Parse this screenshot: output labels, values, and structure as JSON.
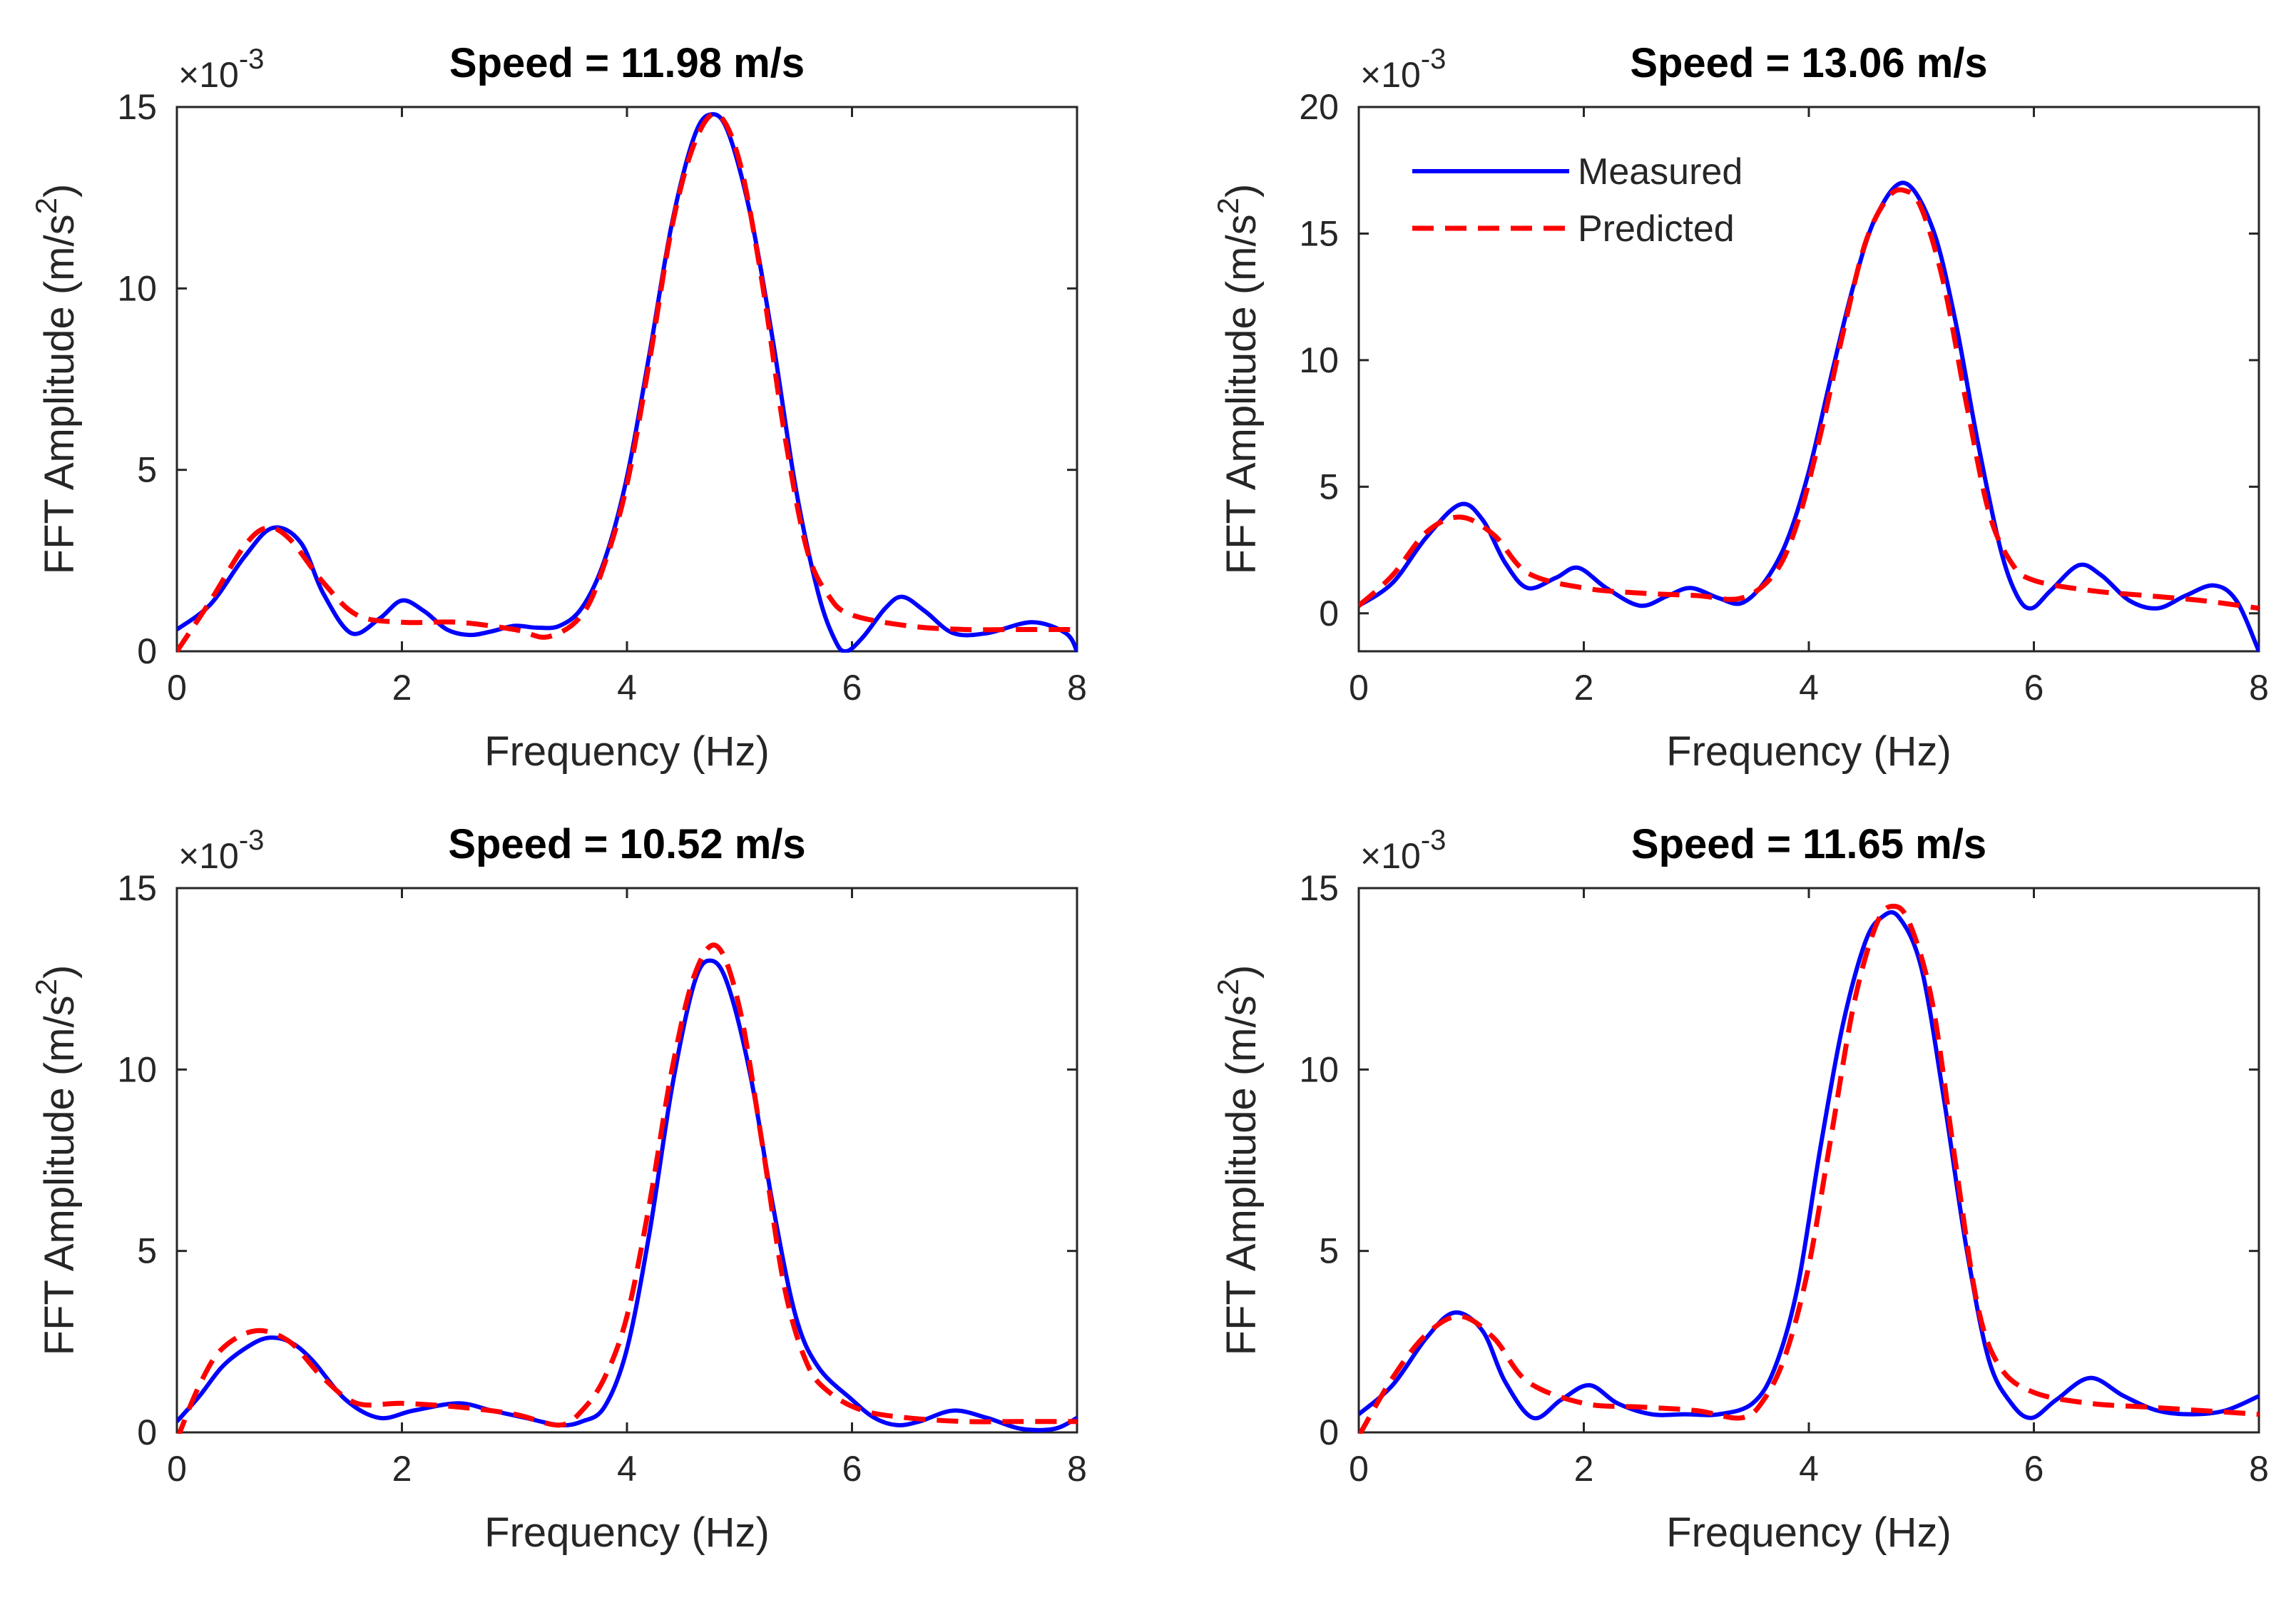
{
  "x_unit": "Hz",
  "y_unit_prefix": "m/s",
  "y_unit_exp": "2",
  "xlabel": "Frequency (Hz)",
  "ylabel_text": "FFT Amplitude (m/s",
  "ylabel_close": ")",
  "scale_mult": "×10",
  "scale_exp": "-3",
  "legend": {
    "measured": "Measured",
    "predicted": "Predicted"
  },
  "colors": {
    "measured": "#0000ff",
    "predicted": "#ff0000",
    "axes": "#262626"
  },
  "chart_data": [
    {
      "type": "line",
      "title": "Speed = 11.98 m/s",
      "xlabel": "Frequency (Hz)",
      "ylabel": "FFT Amplitude (m/s2)",
      "y_scale": "×10^-3",
      "xlim": [
        0,
        8
      ],
      "ylim": [
        0,
        15
      ],
      "xticks": [
        0,
        2,
        4,
        6,
        8
      ],
      "yticks": [
        0,
        5,
        10,
        15
      ],
      "grid": false,
      "legend": "none",
      "series": [
        {
          "name": "Measured",
          "x": [
            0,
            0.3,
            0.6,
            0.85,
            1.1,
            1.3,
            1.55,
            1.8,
            2.0,
            2.2,
            2.4,
            2.6,
            2.8,
            3.0,
            3.2,
            3.4,
            3.6,
            3.8,
            4.0,
            4.2,
            4.4,
            4.6,
            4.75,
            4.9,
            5.1,
            5.3,
            5.5,
            5.7,
            5.85,
            5.95,
            6.1,
            6.3,
            6.45,
            6.65,
            6.9,
            7.2,
            7.6,
            7.9,
            8.0
          ],
          "y": [
            0.6,
            1.3,
            2.6,
            3.4,
            3.0,
            1.6,
            0.5,
            0.9,
            1.4,
            1.1,
            0.6,
            0.45,
            0.55,
            0.7,
            0.65,
            0.7,
            1.2,
            2.5,
            4.8,
            8.2,
            11.8,
            14.2,
            14.8,
            14.3,
            12.0,
            8.5,
            4.5,
            1.6,
            0.3,
            0.0,
            0.4,
            1.2,
            1.5,
            1.1,
            0.5,
            0.5,
            0.8,
            0.5,
            0.0
          ]
        },
        {
          "name": "Predicted",
          "x": [
            0,
            0.3,
            0.6,
            0.8,
            1.0,
            1.3,
            1.6,
            2.0,
            2.5,
            3.0,
            3.3,
            3.6,
            3.8,
            4.0,
            4.2,
            4.4,
            4.6,
            4.8,
            5.0,
            5.2,
            5.4,
            5.6,
            5.8,
            6.0,
            6.5,
            7.0,
            7.5,
            8.0
          ],
          "y": [
            0.0,
            1.4,
            2.9,
            3.4,
            3.1,
            1.9,
            1.0,
            0.8,
            0.8,
            0.6,
            0.4,
            1.0,
            2.4,
            4.6,
            8.0,
            11.7,
            14.0,
            14.8,
            13.5,
            10.2,
            6.0,
            2.8,
            1.5,
            1.0,
            0.7,
            0.6,
            0.6,
            0.6
          ]
        }
      ]
    },
    {
      "type": "line",
      "title": "Speed = 13.06 m/s",
      "xlabel": "Frequency (Hz)",
      "ylabel": "FFT Amplitude (m/s2)",
      "y_scale": "×10^-3",
      "xlim": [
        0,
        8
      ],
      "ylim": [
        -1.5,
        20
      ],
      "xticks": [
        0,
        2,
        4,
        6,
        8
      ],
      "yticks": [
        0,
        5,
        10,
        15,
        20
      ],
      "grid": false,
      "legend": "top-left",
      "series": [
        {
          "name": "Measured",
          "x": [
            0,
            0.3,
            0.6,
            0.9,
            1.1,
            1.3,
            1.5,
            1.75,
            1.95,
            2.2,
            2.5,
            2.75,
            2.95,
            3.2,
            3.4,
            3.6,
            3.8,
            4.0,
            4.2,
            4.4,
            4.6,
            4.85,
            5.1,
            5.3,
            5.5,
            5.7,
            5.85,
            5.98,
            6.15,
            6.4,
            6.6,
            6.85,
            7.1,
            7.35,
            7.6,
            7.8,
            8.0
          ],
          "y": [
            0.3,
            1.2,
            3.0,
            4.3,
            3.7,
            2.0,
            1.0,
            1.4,
            1.8,
            1.0,
            0.3,
            0.7,
            1.0,
            0.6,
            0.4,
            1.2,
            2.8,
            5.6,
            9.4,
            13.0,
            15.7,
            17.0,
            15.2,
            11.6,
            6.8,
            2.6,
            0.7,
            0.2,
            0.9,
            1.9,
            1.5,
            0.5,
            0.2,
            0.7,
            1.1,
            0.5,
            -1.5
          ]
        },
        {
          "name": "Predicted",
          "x": [
            0,
            0.3,
            0.6,
            0.9,
            1.2,
            1.5,
            2.0,
            2.5,
            3.0,
            3.4,
            3.7,
            3.9,
            4.1,
            4.3,
            4.5,
            4.7,
            4.85,
            5.0,
            5.2,
            5.4,
            5.6,
            5.8,
            6.0,
            6.5,
            7.0,
            7.5,
            8.0
          ],
          "y": [
            0.3,
            1.5,
            3.2,
            3.8,
            3.1,
            1.6,
            1.0,
            0.8,
            0.7,
            0.6,
            1.6,
            3.6,
            7.0,
            11.0,
            14.6,
            16.4,
            16.7,
            16.0,
            13.0,
            8.3,
            4.0,
            2.0,
            1.3,
            0.9,
            0.7,
            0.5,
            0.2
          ]
        }
      ]
    },
    {
      "type": "line",
      "title": "Speed = 10.52 m/s",
      "xlabel": "Frequency (Hz)",
      "ylabel": "FFT Amplitude (m/s2)",
      "y_scale": "×10^-3",
      "xlim": [
        0,
        8
      ],
      "ylim": [
        0,
        15
      ],
      "xticks": [
        0,
        2,
        4,
        6,
        8
      ],
      "yticks": [
        0,
        5,
        10,
        15
      ],
      "grid": false,
      "legend": "none",
      "series": [
        {
          "name": "Measured",
          "x": [
            0,
            0.2,
            0.4,
            0.6,
            0.8,
            1.0,
            1.2,
            1.5,
            1.8,
            2.1,
            2.5,
            2.8,
            3.1,
            3.4,
            3.6,
            3.8,
            4.0,
            4.2,
            4.4,
            4.6,
            4.75,
            4.9,
            5.1,
            5.3,
            5.5,
            5.7,
            6.0,
            6.2,
            6.4,
            6.6,
            6.9,
            7.2,
            7.5,
            7.8,
            8.0
          ],
          "y": [
            0.3,
            1.0,
            1.8,
            2.3,
            2.6,
            2.5,
            2.0,
            0.9,
            0.4,
            0.6,
            0.8,
            0.6,
            0.4,
            0.2,
            0.3,
            0.7,
            2.3,
            5.5,
            9.5,
            12.4,
            13.0,
            12.3,
            9.8,
            6.2,
            3.2,
            1.8,
            0.9,
            0.4,
            0.2,
            0.3,
            0.6,
            0.4,
            0.1,
            0.1,
            0.4
          ]
        },
        {
          "name": "Predicted",
          "x": [
            0,
            0.2,
            0.4,
            0.7,
            1.0,
            1.3,
            1.6,
            2.0,
            2.5,
            3.0,
            3.4,
            3.6,
            3.8,
            4.0,
            4.2,
            4.4,
            4.6,
            4.8,
            5.0,
            5.2,
            5.4,
            5.6,
            5.8,
            6.1,
            6.5,
            7.0,
            7.5,
            8.0
          ],
          "y": [
            -0.2,
            1.3,
            2.3,
            2.8,
            2.5,
            1.5,
            0.8,
            0.8,
            0.7,
            0.5,
            0.2,
            0.6,
            1.5,
            3.2,
            6.3,
            10.0,
            12.6,
            13.4,
            11.7,
            8.0,
            4.0,
            1.9,
            1.1,
            0.6,
            0.4,
            0.3,
            0.3,
            0.3
          ]
        }
      ]
    },
    {
      "type": "line",
      "title": "Speed = 11.65 m/s",
      "xlabel": "Frequency (Hz)",
      "ylabel": "FFT Amplitude (m/s2)",
      "y_scale": "×10^-3",
      "xlim": [
        0,
        8
      ],
      "ylim": [
        0,
        15
      ],
      "xticks": [
        0,
        2,
        4,
        6,
        8
      ],
      "yticks": [
        0,
        5,
        10,
        15
      ],
      "grid": false,
      "legend": "none",
      "series": [
        {
          "name": "Measured",
          "x": [
            0,
            0.3,
            0.6,
            0.85,
            1.1,
            1.3,
            1.55,
            1.8,
            2.05,
            2.3,
            2.6,
            2.9,
            3.2,
            3.5,
            3.7,
            3.9,
            4.1,
            4.3,
            4.5,
            4.65,
            4.8,
            5.0,
            5.2,
            5.4,
            5.6,
            5.8,
            5.98,
            6.2,
            6.5,
            6.8,
            7.1,
            7.4,
            7.7,
            8.0
          ],
          "y": [
            0.5,
            1.3,
            2.6,
            3.3,
            2.8,
            1.4,
            0.4,
            0.9,
            1.3,
            0.8,
            0.5,
            0.5,
            0.5,
            0.8,
            1.8,
            4.0,
            7.8,
            11.2,
            13.5,
            14.2,
            14.2,
            12.8,
            9.2,
            5.1,
            2.0,
            0.8,
            0.4,
            0.9,
            1.5,
            1.0,
            0.6,
            0.5,
            0.6,
            1.0
          ]
        },
        {
          "name": "Predicted",
          "x": [
            0,
            0.3,
            0.6,
            0.9,
            1.2,
            1.5,
            2.0,
            2.5,
            3.0,
            3.4,
            3.6,
            3.8,
            4.0,
            4.2,
            4.4,
            4.6,
            4.75,
            4.9,
            5.1,
            5.3,
            5.5,
            5.7,
            6.0,
            6.5,
            7.0,
            7.5,
            8.0
          ],
          "y": [
            -0.1,
            1.5,
            2.7,
            3.2,
            2.6,
            1.4,
            0.8,
            0.7,
            0.6,
            0.4,
            0.9,
            2.2,
            4.6,
            8.2,
            11.8,
            14.0,
            14.5,
            14.0,
            11.8,
            7.5,
            3.5,
            1.8,
            1.1,
            0.8,
            0.7,
            0.6,
            0.5
          ]
        }
      ]
    }
  ]
}
